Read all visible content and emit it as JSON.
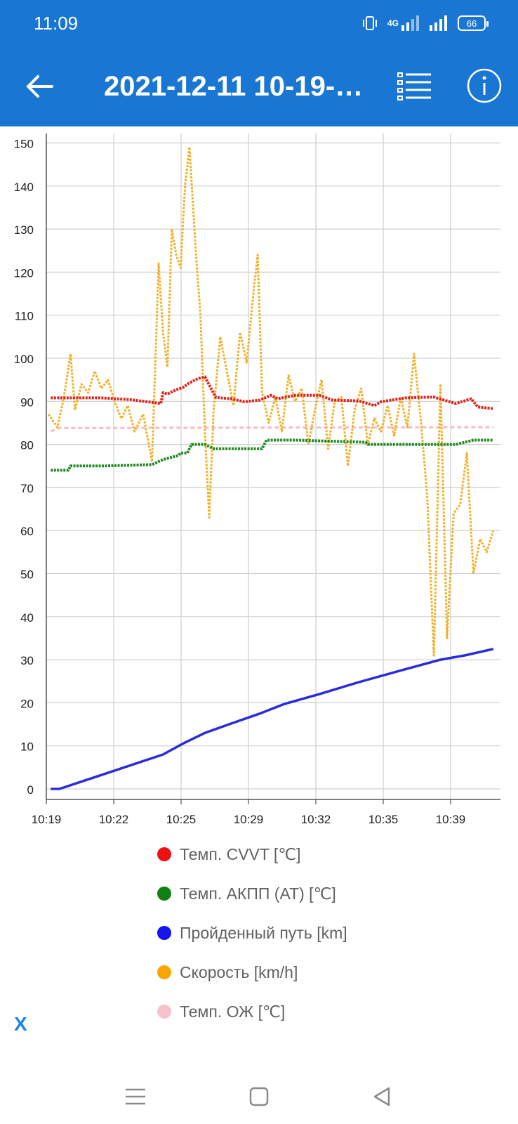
{
  "status_bar": {
    "time": "11:09",
    "network": "4G",
    "battery": "66"
  },
  "app_bar": {
    "title": "2021-12-11 10-19-…",
    "back_icon": "arrow-left-icon",
    "list_icon": "checklist-icon",
    "info_icon": "info-icon"
  },
  "chart_data": {
    "type": "line",
    "grid": true,
    "y_ticks": [
      "0",
      "10",
      "20",
      "30",
      "40",
      "50",
      "60",
      "70",
      "80",
      "90",
      "100",
      "110",
      "120",
      "130",
      "140",
      "150"
    ],
    "x_ticks": [
      "10:19",
      "10:22",
      "10:25",
      "10:29",
      "10:32",
      "10:35",
      "10:39"
    ],
    "ylim": [
      0,
      150
    ],
    "xlim_minutes": [
      0,
      20.3
    ],
    "series": [
      {
        "name": "Темп. CVVT [℃]",
        "color": "#e32119",
        "style": "dotted-thick",
        "x": [
          0.2,
          0.6,
          2.5,
          3.8,
          5.2,
          5.3,
          5.5,
          5.9,
          6.2,
          6.5,
          6.9,
          7.2,
          7.7,
          8.4,
          9.0,
          9.7,
          10.2,
          10.5,
          11.3,
          12.4,
          13.0,
          14.2,
          14.9,
          15.2,
          16.3,
          17.6,
          18.6,
          19.3,
          19.6,
          20.3
        ],
        "y": [
          90.8,
          90.8,
          90.8,
          90.4,
          89.5,
          92.0,
          91.7,
          92.7,
          93.2,
          94.3,
          95.3,
          95.7,
          90.9,
          90.6,
          89.9,
          90.3,
          91.4,
          90.6,
          91.4,
          91.4,
          90.3,
          90.1,
          89.0,
          89.9,
          90.8,
          91.0,
          89.5,
          90.6,
          88.7,
          88.3
        ]
      },
      {
        "name": "Темп. АКПП (AT) [℃]",
        "color": "#1d8a1d",
        "style": "dotted-thick",
        "x": [
          0.2,
          1.0,
          1.1,
          2.6,
          4.8,
          5.3,
          6.0,
          6.1,
          6.4,
          6.6,
          7.2,
          7.6,
          9.8,
          10.0,
          10.6,
          11.3,
          14.5,
          14.6,
          17.0,
          18.6,
          19.4,
          20.3
        ],
        "y": [
          74.0,
          74.0,
          75.0,
          75.0,
          75.3,
          76.5,
          77.4,
          78.0,
          78.0,
          80.0,
          80.0,
          79.0,
          79.0,
          81.0,
          81.0,
          81.0,
          80.5,
          80.0,
          80.0,
          80.0,
          81.0,
          81.0
        ]
      },
      {
        "name": "Пройденный путь [km]",
        "color": "#2b2bd8",
        "style": "solid",
        "x": [
          0.2,
          0.6,
          5.3,
          6.2,
          7.2,
          8.3,
          9.7,
          10.8,
          12.4,
          14.2,
          16.1,
          17.9,
          19.0,
          20.3
        ],
        "y": [
          0.0,
          0.0,
          8.0,
          10.5,
          13.0,
          15.0,
          17.5,
          19.7,
          22.0,
          24.8,
          27.5,
          30.0,
          31.0,
          32.5
        ]
      },
      {
        "name": "Скорость [km/h]",
        "color": "#f0b024",
        "style": "dotted",
        "x": [
          0.1,
          0.5,
          0.8,
          1.1,
          1.3,
          1.6,
          1.9,
          2.2,
          2.5,
          2.8,
          3.1,
          3.4,
          3.7,
          4.0,
          4.4,
          4.8,
          5.1,
          5.3,
          5.5,
          5.7,
          5.9,
          6.1,
          6.3,
          6.5,
          6.8,
          7.0,
          7.2,
          7.4,
          7.6,
          7.9,
          8.2,
          8.5,
          8.8,
          9.1,
          9.4,
          9.6,
          9.8,
          10.1,
          10.4,
          10.7,
          11.0,
          11.3,
          11.6,
          11.9,
          12.2,
          12.5,
          12.8,
          13.1,
          13.4,
          13.7,
          14.0,
          14.3,
          14.6,
          14.9,
          15.2,
          15.5,
          15.8,
          16.1,
          16.4,
          16.7,
          17.0,
          17.3,
          17.6,
          17.9,
          18.2,
          18.5,
          18.8,
          19.1,
          19.4,
          19.7,
          20.0,
          20.3
        ],
        "y": [
          87,
          84,
          91,
          101,
          88,
          94,
          92,
          97,
          93,
          95,
          90,
          86,
          89,
          83,
          87,
          76,
          122,
          106,
          98,
          130,
          124,
          121,
          140,
          149,
          124,
          110,
          83,
          63,
          88,
          105,
          97,
          89,
          106,
          99,
          115,
          124,
          92,
          85,
          91,
          83,
          96,
          90,
          93,
          80,
          88,
          95,
          79,
          90,
          91,
          75,
          88,
          93,
          80,
          86,
          83,
          89,
          82,
          91,
          84,
          101,
          86,
          68,
          31,
          94,
          35,
          64,
          66,
          78,
          50,
          58,
          55,
          60
        ]
      },
      {
        "name": "Темп. ОЖ [℃]",
        "color": "#f5bcc8",
        "style": "dashed",
        "x": [
          0.2,
          0.6,
          20.3
        ],
        "y": [
          83.0,
          83.8,
          84.0
        ]
      }
    ]
  },
  "legend": [
    {
      "label": "Темп. CVVT [℃]",
      "color": "#ee1111"
    },
    {
      "label": "Темп. АКПП (AT) [℃]",
      "color": "#127f12"
    },
    {
      "label": "Пройденный путь [km]",
      "color": "#1414ee"
    },
    {
      "label": "Скорость [km/h]",
      "color": "#fba600"
    },
    {
      "label": "Темп. ОЖ [℃]",
      "color": "#f7c1cc"
    }
  ],
  "close_label": "X",
  "nav_bar": {
    "menu_icon": "menu-icon",
    "home_icon": "home-square-icon",
    "back_icon": "back-triangle-icon"
  }
}
